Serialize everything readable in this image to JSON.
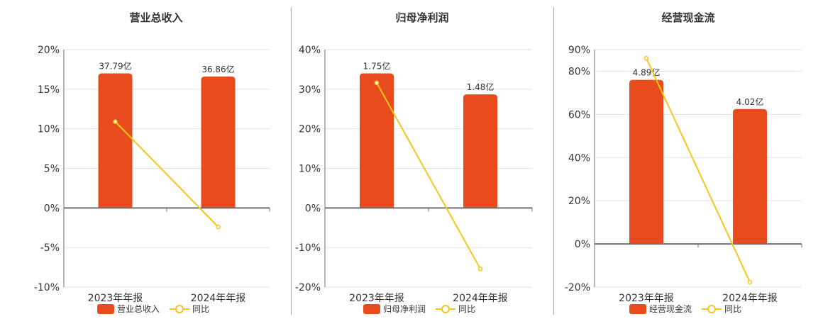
{
  "colors": {
    "bar": "#e84c1c",
    "line": "#f2c81a",
    "grid": "#dde3ea",
    "axis": "#6e7079"
  },
  "chart_data": [
    {
      "type": "bar+line",
      "title": "营业总收入",
      "categories": [
        "2023年年报",
        "2024年年报"
      ],
      "series": [
        {
          "name": "营业总收入",
          "type": "bar",
          "labels": [
            "37.79亿",
            "36.86亿"
          ],
          "values": [
            37.79,
            36.86
          ],
          "unit": "亿",
          "plot_values_pct_scale": [
            17.0,
            16.6
          ]
        },
        {
          "name": "同比",
          "type": "line",
          "values": [
            10.9,
            -2.4
          ],
          "unit": "%"
        }
      ],
      "yticks": [
        "20%",
        "15%",
        "10%",
        "5%",
        "0%",
        "-5%",
        "-10%"
      ],
      "ytick_values": [
        20,
        15,
        10,
        5,
        0,
        -5,
        -10
      ],
      "ylim": [
        -10,
        20
      ],
      "legend_position": "bottom"
    },
    {
      "type": "bar+line",
      "title": "归母净利润",
      "categories": [
        "2023年年报",
        "2024年年报"
      ],
      "series": [
        {
          "name": "归母净利润",
          "type": "bar",
          "labels": [
            "1.75亿",
            "1.48亿"
          ],
          "values": [
            1.75,
            1.48
          ],
          "unit": "亿",
          "plot_values_pct_scale": [
            34.0,
            28.7
          ]
        },
        {
          "name": "同比",
          "type": "line",
          "values": [
            31.6,
            -15.4
          ],
          "unit": "%"
        }
      ],
      "yticks": [
        "40%",
        "30%",
        "20%",
        "10%",
        "0%",
        "-10%",
        "-20%"
      ],
      "ytick_values": [
        40,
        30,
        20,
        10,
        0,
        -10,
        -20
      ],
      "ylim": [
        -20,
        40
      ],
      "legend_position": "bottom"
    },
    {
      "type": "bar+line",
      "title": "经营现金流",
      "categories": [
        "2023年年报",
        "2024年年报"
      ],
      "series": [
        {
          "name": "经营现金流",
          "type": "bar",
          "labels": [
            "4.89亿",
            "4.02亿"
          ],
          "values": [
            4.89,
            4.02
          ],
          "unit": "亿",
          "plot_values_pct_scale": [
            76.0,
            62.5
          ]
        },
        {
          "name": "同比",
          "type": "line",
          "values": [
            86.0,
            -17.7
          ],
          "unit": "%"
        }
      ],
      "yticks": [
        "90%",
        "80%",
        "60%",
        "40%",
        "20%",
        "0%",
        "-20%"
      ],
      "ytick_values": [
        90,
        80,
        60,
        40,
        20,
        0,
        -20
      ],
      "ylim": [
        -20,
        90
      ],
      "legend_position": "bottom"
    }
  ]
}
